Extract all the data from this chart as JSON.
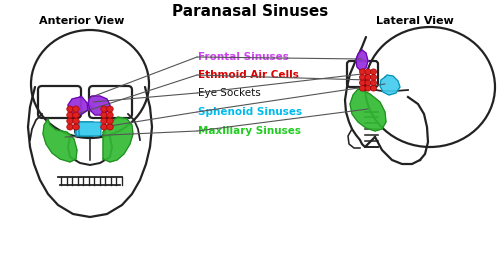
{
  "title": "Paranasal Sinuses",
  "title_fontsize": 11,
  "title_fontweight": "bold",
  "bg_color": "#ffffff",
  "anterior_label": "Anterior View",
  "lateral_label": "Lateral View",
  "labels": {
    "frontal": {
      "text": "Frontal Sinuses",
      "color": "#cc44ee"
    },
    "ethmoid": {
      "text": "Ethmoid Air Cells",
      "color": "#dd0000"
    },
    "eye": {
      "text": "Eye Sockets",
      "color": "#111111"
    },
    "sphenoid": {
      "text": "Sphenoid Sinuses",
      "color": "#00bbee"
    },
    "maxillary": {
      "text": "Maxillary Sinuses",
      "color": "#22cc22"
    }
  },
  "frontal_color": "#9933dd",
  "frontal_edge": "#6600aa",
  "ethmoid_color": "#dd2222",
  "ethmoid_edge": "#aa0000",
  "sphenoid_color": "#44ccee",
  "sphenoid_edge": "#0088aa",
  "maxillary_color": "#33bb33",
  "maxillary_edge": "#228822",
  "skull_color": "#222222",
  "skull_lw": 1.6,
  "label_fontsize": 7.5,
  "line_color": "#555555"
}
